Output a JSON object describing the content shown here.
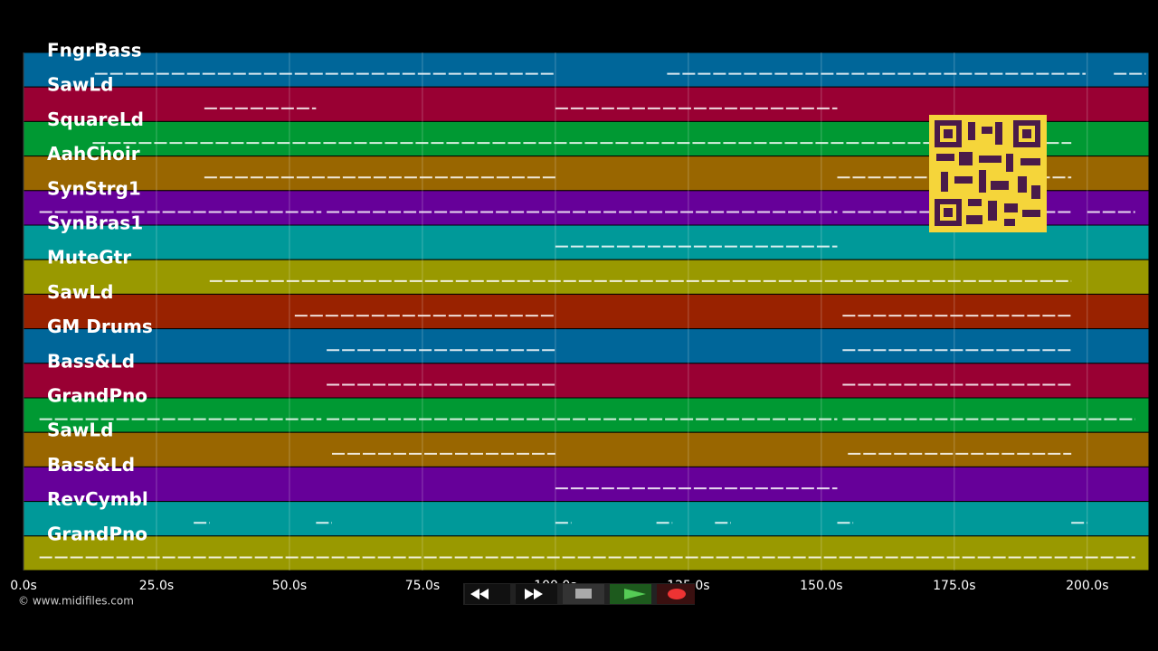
{
  "tracks": [
    {
      "name": "FngrBass",
      "color": "#006699",
      "segments": [
        [
          13.4,
          99.8
        ],
        [
          121,
          199.7
        ],
        [
          205,
          211
        ]
      ]
    },
    {
      "name": "SawLd",
      "color": "#990033",
      "segments": [
        [
          34,
          55
        ],
        [
          100,
          153
        ]
      ]
    },
    {
      "name": "SquareLd",
      "color": "#009933",
      "segments": [
        [
          13,
          197
        ]
      ]
    },
    {
      "name": "AahChoir",
      "color": "#996600",
      "segments": [
        [
          34,
          100
        ],
        [
          153,
          197
        ]
      ]
    },
    {
      "name": "SynStrg1",
      "color": "#660099",
      "segments": [
        [
          3,
          56
        ],
        [
          57,
          153
        ],
        [
          154,
          197
        ],
        [
          200,
          209
        ]
      ]
    },
    {
      "name": "SynBras1",
      "color": "#009999",
      "segments": [
        [
          100,
          153
        ]
      ]
    },
    {
      "name": "MuteGtr",
      "color": "#999900",
      "segments": [
        [
          35,
          197
        ]
      ]
    },
    {
      "name": "SawLd",
      "color": "#992200",
      "segments": [
        [
          51,
          100
        ],
        [
          154,
          197
        ]
      ]
    },
    {
      "name": "GM Drums",
      "color": "#006699",
      "segments": [
        [
          57,
          100
        ],
        [
          154,
          197
        ]
      ]
    },
    {
      "name": "Bass&Ld",
      "color": "#990033",
      "segments": [
        [
          57,
          100
        ],
        [
          154,
          197
        ]
      ]
    },
    {
      "name": "GrandPno",
      "color": "#009933",
      "segments": [
        [
          3,
          56
        ],
        [
          57,
          153
        ],
        [
          154,
          209
        ]
      ]
    },
    {
      "name": "SawLd",
      "color": "#996600",
      "segments": [
        [
          58,
          100
        ],
        [
          155,
          197
        ]
      ]
    },
    {
      "name": "Bass&Ld",
      "color": "#660099",
      "segments": [
        [
          100,
          153
        ]
      ]
    },
    {
      "name": "RevCymbl",
      "color": "#009999",
      "segments": [
        [
          32,
          35
        ],
        [
          55,
          58
        ],
        [
          100,
          103
        ],
        [
          119,
          122
        ],
        [
          130,
          133
        ],
        [
          153,
          156
        ],
        [
          197,
          200
        ]
      ]
    },
    {
      "name": "GrandPno",
      "color": "#999900",
      "segments": [
        [
          3,
          209
        ]
      ]
    }
  ],
  "time_axis": {
    "xlim": [
      0,
      211.6
    ],
    "ticks": [
      {
        "value": 0,
        "label": "0.0s"
      },
      {
        "value": 25,
        "label": "25.0s"
      },
      {
        "value": 50,
        "label": "50.0s"
      },
      {
        "value": 75,
        "label": "75.0s"
      },
      {
        "value": 100,
        "label": "100.0s"
      },
      {
        "value": 125,
        "label": "125.0s"
      },
      {
        "value": 150,
        "label": "150.0s"
      },
      {
        "value": 175,
        "label": "175.0s"
      },
      {
        "value": 200,
        "label": "200.0s"
      }
    ]
  },
  "copyright": "© www.midifiles.com"
}
